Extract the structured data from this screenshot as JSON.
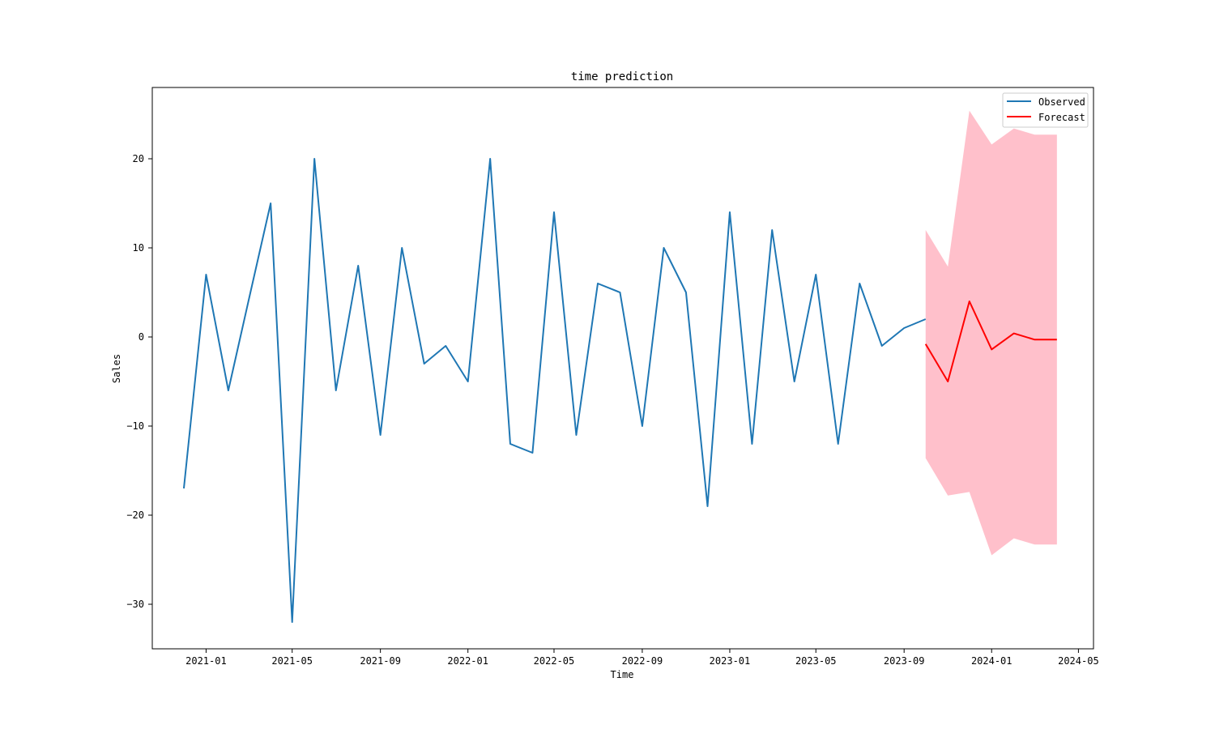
{
  "chart_data": {
    "type": "line",
    "title": "time prediction",
    "xlabel": "Time",
    "ylabel": "Sales",
    "ylim": [
      -35,
      28
    ],
    "xlim": [
      "2020-10-18",
      "2024-05-22"
    ],
    "grid": false,
    "legend_position": "top-right",
    "x_ticks": [
      "2021-01",
      "2021-05",
      "2021-09",
      "2022-01",
      "2022-05",
      "2022-09",
      "2023-01",
      "2023-05",
      "2023-09",
      "2024-01",
      "2024-05"
    ],
    "y_ticks": [
      20,
      10,
      0,
      -10,
      -20,
      -30
    ],
    "series": [
      {
        "name": "Observed",
        "color": "#1f77b4",
        "x": [
          "2020-12-01",
          "2021-01-01",
          "2021-02-01",
          "2021-03-01",
          "2021-04-01",
          "2021-05-01",
          "2021-06-01",
          "2021-07-01",
          "2021-08-01",
          "2021-09-01",
          "2021-10-01",
          "2021-11-01",
          "2021-12-01",
          "2022-01-01",
          "2022-02-01",
          "2022-03-01",
          "2022-04-01",
          "2022-05-01",
          "2022-06-01",
          "2022-07-01",
          "2022-08-01",
          "2022-09-01",
          "2022-10-01",
          "2022-11-01",
          "2022-12-01",
          "2023-01-01",
          "2023-02-01",
          "2023-03-01",
          "2023-04-01",
          "2023-05-01",
          "2023-06-01",
          "2023-07-01",
          "2023-08-01",
          "2023-09-01",
          "2023-10-01"
        ],
        "values": [
          -17,
          7,
          -6,
          4,
          15,
          -32,
          20,
          -6,
          8,
          -11,
          10,
          -3,
          -1,
          -5,
          20,
          -12,
          -13,
          14,
          -11,
          6,
          5,
          -10,
          10,
          5,
          -19,
          14,
          -12,
          12,
          -5,
          7,
          -12,
          6,
          -1,
          1,
          2
        ]
      },
      {
        "name": "Forecast",
        "color": "#ff0000",
        "x": [
          "2023-10-01",
          "2023-11-01",
          "2023-12-01",
          "2024-01-01",
          "2024-02-01",
          "2024-03-01",
          "2024-04-01"
        ],
        "values": [
          -0.8,
          -5,
          4,
          -1.4,
          0.4,
          -0.3,
          -0.3
        ]
      }
    ],
    "confidence_band": {
      "color": "#ffc0cb",
      "x": [
        "2023-10-01",
        "2023-11-01",
        "2023-12-01",
        "2024-01-01",
        "2024-02-01",
        "2024-03-01",
        "2024-04-01"
      ],
      "lower": [
        -13.6,
        -17.8,
        -17.4,
        -24.5,
        -22.6,
        -23.3,
        -23.3
      ],
      "upper": [
        12,
        7.9,
        25.4,
        21.6,
        23.4,
        22.7,
        22.7
      ]
    }
  }
}
